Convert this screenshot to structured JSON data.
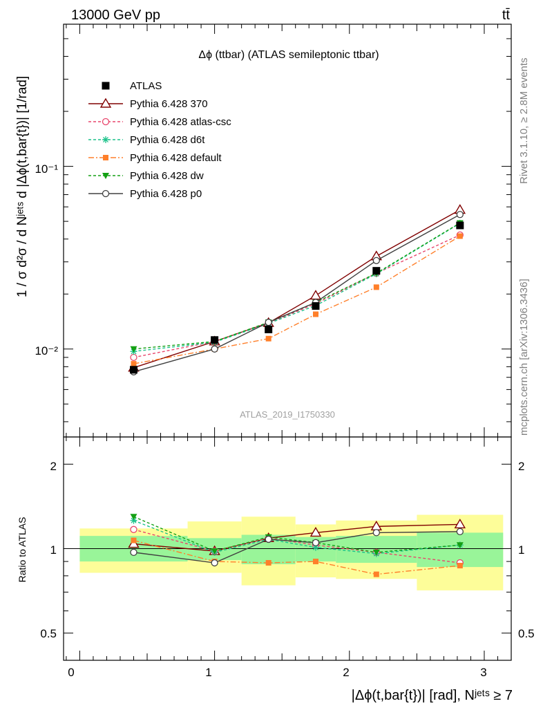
{
  "header": {
    "left": "13000 GeV pp",
    "right": "tt̄"
  },
  "side_labels": {
    "rivet": "Rivet 3.1.10, ≥ 2.8M events",
    "mcplots": "mcplots.cern.ch [arXiv:1306.3436]"
  },
  "main_plot": {
    "title": "Δϕ (ttbar) (ATLAS semileptonic ttbar)",
    "watermark": "ATLAS_2019_I1750330",
    "ylabel": "1 / σ d²σ / d Nʲᵉᵗˢ d |Δϕ(t,bar{t})| [1/rad]",
    "ytick_labels": [
      "10⁻²",
      "10⁻¹"
    ]
  },
  "ratio_plot": {
    "ylabel": "Ratio to ATLAS",
    "ytick_labels": [
      "0.5",
      "1",
      "2"
    ]
  },
  "xaxis": {
    "label": "|Δϕ(t,bar{t})| [rad], Nʲᵉᵗˢ ≥ 7",
    "tick_labels": [
      "0",
      "1",
      "2",
      "3"
    ]
  },
  "colors": {
    "data": "#000000",
    "p370": "#800000",
    "atlascsc": "#e8456b",
    "d6t": "#1bc28a",
    "default": "#ff7f2a",
    "dw": "#14a014",
    "p0": "#404040",
    "band_inner": "#99f599",
    "band_outer": "#fdfd99"
  },
  "chart_data": {
    "type": "line",
    "x_scale": "linear",
    "y_scale": "log",
    "xlim": [
      -0.12,
      3.2
    ],
    "ylim": [
      0.0033,
      0.6
    ],
    "ratio_ylim": [
      0.4,
      2.5
    ],
    "ratio_scale": "log",
    "bins": [
      [
        0,
        0.8
      ],
      [
        0.8,
        1.2
      ],
      [
        1.2,
        1.6
      ],
      [
        1.6,
        1.9
      ],
      [
        1.9,
        2.5
      ],
      [
        2.5,
        3.14
      ]
    ],
    "x": [
      0.4,
      1.0,
      1.4,
      1.75,
      2.2,
      2.82
    ],
    "data_values": [
      0.0077,
      0.0112,
      0.0128,
      0.0172,
      0.0268,
      0.0475
    ],
    "ratio_band_inner": [
      [
        0.9,
        1.11
      ],
      [
        0.91,
        1.09
      ],
      [
        0.88,
        1.12
      ],
      [
        0.9,
        1.1
      ],
      [
        0.89,
        1.11
      ],
      [
        0.86,
        1.14
      ]
    ],
    "ratio_band_outer": [
      [
        0.82,
        1.18
      ],
      [
        0.82,
        1.25
      ],
      [
        0.74,
        1.3
      ],
      [
        0.79,
        1.22
      ],
      [
        0.78,
        1.26
      ],
      [
        0.71,
        1.32
      ]
    ],
    "series": [
      {
        "name": "Pythia 6.428 370",
        "key": "p370",
        "marker": "triangle-open",
        "dash": "",
        "values": [
          0.0079,
          0.011,
          0.0139,
          0.0196,
          0.0322,
          0.0578
        ],
        "ratio": [
          1.04,
          0.98,
          1.09,
          1.14,
          1.2,
          1.22
        ]
      },
      {
        "name": "Pythia 6.428 atlas-csc",
        "key": "atlascsc",
        "marker": "circle-open",
        "dash": "4,3",
        "values": [
          0.009,
          0.011,
          0.0139,
          0.0177,
          0.026,
          0.0421
        ],
        "ratio": [
          1.17,
          0.98,
          1.09,
          1.03,
          0.97,
          0.89
        ]
      },
      {
        "name": "Pythia 6.428 d6t",
        "key": "d6t",
        "marker": "star",
        "dash": "4,3",
        "values": [
          0.0097,
          0.0109,
          0.0138,
          0.0173,
          0.0258,
          0.0488
        ],
        "ratio": [
          1.26,
          0.97,
          1.08,
          1.01,
          0.96,
          1.03
        ]
      },
      {
        "name": "Pythia 6.428 default",
        "key": "default",
        "marker": "square",
        "dash": "8,3,2,3",
        "values": [
          0.0083,
          0.01,
          0.0114,
          0.0155,
          0.0218,
          0.0415
        ],
        "ratio": [
          1.07,
          0.9,
          0.89,
          0.9,
          0.81,
          0.87
        ]
      },
      {
        "name": "Pythia 6.428 dw",
        "key": "dw",
        "marker": "triangle-down",
        "dash": "4,3",
        "values": [
          0.01,
          0.011,
          0.014,
          0.018,
          0.026,
          0.049
        ],
        "ratio": [
          1.3,
          0.98,
          1.1,
          1.05,
          0.97,
          1.03
        ]
      },
      {
        "name": "Pythia 6.428 p0",
        "key": "p0",
        "marker": "circle-open",
        "dash": "",
        "values": [
          0.0075,
          0.01,
          0.014,
          0.018,
          0.0305,
          0.0545
        ],
        "ratio": [
          0.97,
          0.89,
          1.08,
          1.05,
          1.14,
          1.15
        ]
      }
    ],
    "legend": [
      {
        "label": "ATLAS",
        "key": "data",
        "marker": "square-filled",
        "dash": ""
      },
      {
        "label": "Pythia 6.428 370",
        "key": "p370",
        "marker": "triangle-open",
        "dash": ""
      },
      {
        "label": "Pythia 6.428 atlas-csc",
        "key": "atlascsc",
        "marker": "circle-open",
        "dash": "4,3"
      },
      {
        "label": "Pythia 6.428 d6t",
        "key": "d6t",
        "marker": "star",
        "dash": "4,3"
      },
      {
        "label": "Pythia 6.428 default",
        "key": "default",
        "marker": "square",
        "dash": "8,3,2,3"
      },
      {
        "label": "Pythia 6.428 dw",
        "key": "dw",
        "marker": "triangle-down",
        "dash": "4,3"
      },
      {
        "label": "Pythia 6.428 p0",
        "key": "p0",
        "marker": "circle-open",
        "dash": ""
      }
    ],
    "legend_position": "top-left"
  }
}
